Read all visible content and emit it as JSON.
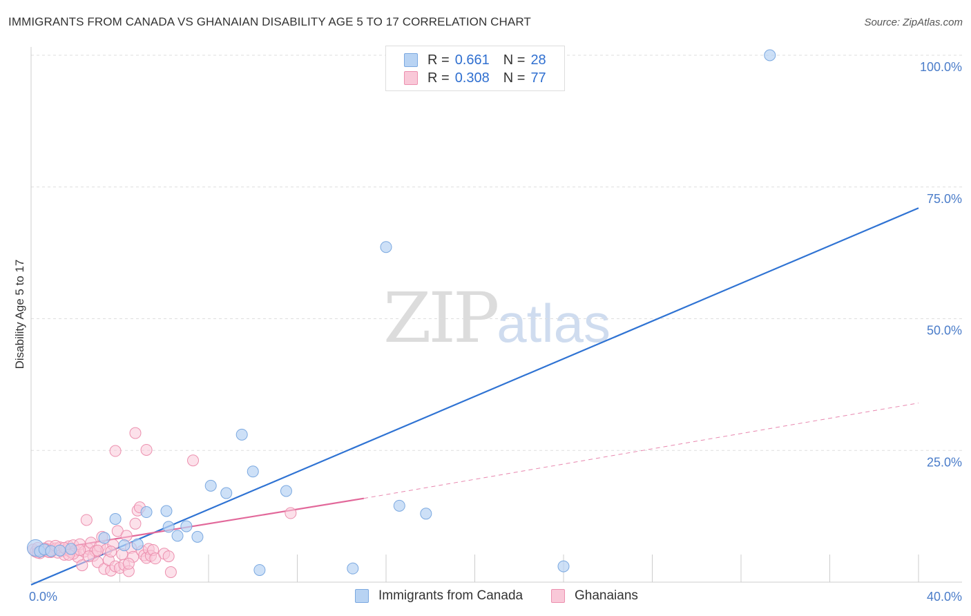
{
  "header": {
    "title": "IMMIGRANTS FROM CANADA VS GHANAIAN DISABILITY AGE 5 TO 17 CORRELATION CHART",
    "source": "Source: ZipAtlas.com"
  },
  "watermark": {
    "zip": "ZIP",
    "atlas": "atlas"
  },
  "legend": {
    "row1": {
      "r_label": "R =",
      "r_value": "0.661",
      "n_label": "N =",
      "n_value": "28"
    },
    "row2": {
      "r_label": "R =",
      "r_value": "0.308",
      "n_label": "N =",
      "n_value": "77"
    }
  },
  "bottom_legend": {
    "series1": "Immigrants from Canada",
    "series2": "Ghanaians"
  },
  "colors": {
    "blue_fill": "#b8d3f3",
    "blue_stroke": "#7aa8e0",
    "blue_line": "#2f73d3",
    "pink_fill": "#f9c8d8",
    "pink_stroke": "#ec8fae",
    "pink_line": "#e2689a"
  },
  "chart_data": {
    "type": "scatter",
    "title": "IMMIGRANTS FROM CANADA VS GHANAIAN DISABILITY AGE 5 TO 17 CORRELATION CHART",
    "xlabel": "",
    "ylabel": "Disability Age 5 to 17",
    "xlim": [
      0,
      40
    ],
    "ylim": [
      0,
      100
    ],
    "x_tick_labels": [
      "0.0%",
      "40.0%"
    ],
    "y_tick_labels": [
      "25.0%",
      "50.0%",
      "75.0%",
      "100.0%"
    ],
    "y_ticks": [
      25,
      50,
      75,
      100
    ],
    "grid": true,
    "series": [
      {
        "name": "Immigrants from Canada",
        "r": 0.661,
        "n": 28,
        "points": [
          [
            0.2,
            6.5
          ],
          [
            0.4,
            5.8
          ],
          [
            0.6,
            6.2
          ],
          [
            0.9,
            5.9
          ],
          [
            1.3,
            6.0
          ],
          [
            1.8,
            6.3
          ],
          [
            3.3,
            8.4
          ],
          [
            3.8,
            12.0
          ],
          [
            4.2,
            7.0
          ],
          [
            4.8,
            7.2
          ],
          [
            5.2,
            13.3
          ],
          [
            6.1,
            13.5
          ],
          [
            6.2,
            10.5
          ],
          [
            6.6,
            8.8
          ],
          [
            7.0,
            10.6
          ],
          [
            7.5,
            8.6
          ],
          [
            8.1,
            18.3
          ],
          [
            8.8,
            16.9
          ],
          [
            9.5,
            28.0
          ],
          [
            10.0,
            21.0
          ],
          [
            10.3,
            2.3
          ],
          [
            11.5,
            17.3
          ],
          [
            14.5,
            2.6
          ],
          [
            16.0,
            63.6
          ],
          [
            16.6,
            14.5
          ],
          [
            17.8,
            13.0
          ],
          [
            24.0,
            3.0
          ],
          [
            33.3,
            100.0
          ]
        ],
        "trend": {
          "x0": 0,
          "y0": -0.5,
          "x1": 40,
          "y1": 71.0
        }
      },
      {
        "name": "Ghanaians",
        "r": 0.308,
        "n": 77,
        "points": [
          [
            0.1,
            6.2
          ],
          [
            0.2,
            5.8
          ],
          [
            0.3,
            6.5
          ],
          [
            0.4,
            5.5
          ],
          [
            0.5,
            6.0
          ],
          [
            0.6,
            5.9
          ],
          [
            0.7,
            6.3
          ],
          [
            0.8,
            6.8
          ],
          [
            0.9,
            5.7
          ],
          [
            1.0,
            6.1
          ],
          [
            1.1,
            6.4
          ],
          [
            1.2,
            5.6
          ],
          [
            1.3,
            6.6
          ],
          [
            1.4,
            5.9
          ],
          [
            1.5,
            5.2
          ],
          [
            1.6,
            6.2
          ],
          [
            1.7,
            6.8
          ],
          [
            1.8,
            5.7
          ],
          [
            1.9,
            7.0
          ],
          [
            2.0,
            6.0
          ],
          [
            2.1,
            4.8
          ],
          [
            2.2,
            7.2
          ],
          [
            2.3,
            3.2
          ],
          [
            2.4,
            5.8
          ],
          [
            2.5,
            11.8
          ],
          [
            2.6,
            6.3
          ],
          [
            2.7,
            7.5
          ],
          [
            2.8,
            5.0
          ],
          [
            2.9,
            5.9
          ],
          [
            3.0,
            3.8
          ],
          [
            3.1,
            6.8
          ],
          [
            3.2,
            8.6
          ],
          [
            3.3,
            2.5
          ],
          [
            3.4,
            6.2
          ],
          [
            3.5,
            4.2
          ],
          [
            3.6,
            2.2
          ],
          [
            3.7,
            7.1
          ],
          [
            3.8,
            3.0
          ],
          [
            3.9,
            9.7
          ],
          [
            4.0,
            2.7
          ],
          [
            4.1,
            5.3
          ],
          [
            4.2,
            3.3
          ],
          [
            4.3,
            8.8
          ],
          [
            4.4,
            2.1
          ],
          [
            4.5,
            6.5
          ],
          [
            4.6,
            4.8
          ],
          [
            4.7,
            11.1
          ],
          [
            4.8,
            13.6
          ],
          [
            4.9,
            14.2
          ],
          [
            5.0,
            5.9
          ],
          [
            5.1,
            5.1
          ],
          [
            5.2,
            4.6
          ],
          [
            5.3,
            6.3
          ],
          [
            5.4,
            5.0
          ],
          [
            5.5,
            6.1
          ],
          [
            5.6,
            4.5
          ],
          [
            6.0,
            5.4
          ],
          [
            6.2,
            4.9
          ],
          [
            6.3,
            1.9
          ],
          [
            3.8,
            24.9
          ],
          [
            5.2,
            25.1
          ],
          [
            4.7,
            28.3
          ],
          [
            7.3,
            23.1
          ],
          [
            11.7,
            13.1
          ],
          [
            0.5,
            6.0
          ],
          [
            0.8,
            5.7
          ],
          [
            1.1,
            6.9
          ],
          [
            1.9,
            5.4
          ],
          [
            2.6,
            4.9
          ],
          [
            3.0,
            6.0
          ],
          [
            1.5,
            6.5
          ],
          [
            0.3,
            5.6
          ],
          [
            2.2,
            6.1
          ],
          [
            0.6,
            6.4
          ],
          [
            1.7,
            5.2
          ],
          [
            4.4,
            3.5
          ],
          [
            3.6,
            5.8
          ]
        ],
        "trend_solid": {
          "x0": 0,
          "y0": 5.6,
          "x1": 15,
          "y1": 15.9
        },
        "trend_dashed": {
          "x0": 15,
          "y0": 15.9,
          "x1": 40,
          "y1": 34.0
        }
      }
    ]
  }
}
